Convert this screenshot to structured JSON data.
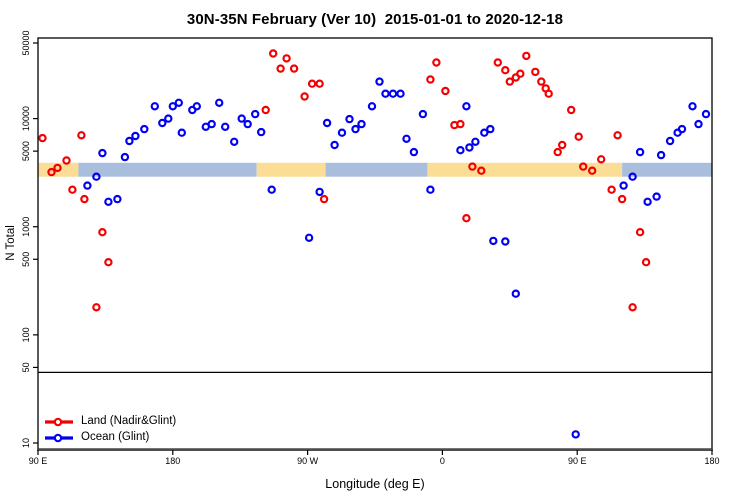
{
  "chart_data": {
    "type": "scatter",
    "title": "30N-35N February (Ver 10)  2015-01-01 to 2020-12-18",
    "xlabel": "Longitude (deg E)",
    "ylabel": "N Total",
    "y_scale": "log",
    "y_range": [
      10,
      50000
    ],
    "y_ticks": [
      10,
      50,
      100,
      500,
      1000,
      5000,
      10000,
      50000
    ],
    "x_axis_span_deg": [
      0,
      450
    ],
    "x_ticks": [
      {
        "pos": 0,
        "label": "90 E"
      },
      {
        "pos": 90,
        "label": "180"
      },
      {
        "pos": 180,
        "label": "90 W"
      },
      {
        "pos": 270,
        "label": "0"
      },
      {
        "pos": 360,
        "label": "90 E"
      },
      {
        "pos": 450,
        "label": "180"
      }
    ],
    "grid": "off",
    "legend_position": "bottom-left-inside",
    "hline_y": 45,
    "band": {
      "y_range": [
        2900,
        3900
      ],
      "colors": {
        "yellow": "#fbdd95",
        "blue": "#a9bedd"
      },
      "segments": [
        {
          "from": 0,
          "to": 27,
          "color": "yellow"
        },
        {
          "from": 27,
          "to": 146,
          "color": "blue"
        },
        {
          "from": 146,
          "to": 192,
          "color": "yellow"
        },
        {
          "from": 192,
          "to": 260,
          "color": "blue"
        },
        {
          "from": 260,
          "to": 390,
          "color": "yellow"
        },
        {
          "from": 390,
          "to": 450,
          "color": "blue"
        }
      ]
    },
    "series": [
      {
        "name": "Land (Nadir&Glint)",
        "color": "#f40000",
        "points": [
          [
            3,
            6600
          ],
          [
            9,
            3200
          ],
          [
            13,
            3500
          ],
          [
            19,
            4100
          ],
          [
            23,
            2200
          ],
          [
            29,
            7000
          ],
          [
            31,
            1800
          ],
          [
            39,
            180
          ],
          [
            43,
            890
          ],
          [
            47,
            470
          ],
          [
            152,
            12000
          ],
          [
            157,
            40000
          ],
          [
            162,
            29000
          ],
          [
            166,
            36000
          ],
          [
            171,
            29000
          ],
          [
            178,
            16000
          ],
          [
            183,
            21000
          ],
          [
            188,
            21000
          ],
          [
            191,
            1800
          ],
          [
            262,
            23000
          ],
          [
            266,
            33000
          ],
          [
            272,
            18000
          ],
          [
            278,
            8700
          ],
          [
            282,
            8900
          ],
          [
            286,
            1200
          ],
          [
            290,
            3600
          ],
          [
            296,
            3300
          ],
          [
            307,
            33000
          ],
          [
            312,
            28000
          ],
          [
            315,
            22000
          ],
          [
            319,
            24000
          ],
          [
            322,
            26000
          ],
          [
            326,
            38000
          ],
          [
            332,
            27000
          ],
          [
            336,
            22000
          ],
          [
            339,
            19000
          ],
          [
            341,
            17000
          ],
          [
            347,
            4900
          ],
          [
            350,
            5700
          ],
          [
            356,
            12000
          ],
          [
            361,
            6800
          ],
          [
            364,
            3600
          ],
          [
            370,
            3300
          ],
          [
            376,
            4200
          ],
          [
            383,
            2200
          ],
          [
            387,
            7000
          ],
          [
            390,
            1800
          ],
          [
            397,
            180
          ],
          [
            402,
            890
          ],
          [
            406,
            470
          ]
        ]
      },
      {
        "name": "Ocean (Glint)",
        "color": "#0000f4",
        "points": [
          [
            33,
            2400
          ],
          [
            39,
            2900
          ],
          [
            43,
            4800
          ],
          [
            47,
            1700
          ],
          [
            53,
            1800
          ],
          [
            58,
            4400
          ],
          [
            61,
            6200
          ],
          [
            65,
            6900
          ],
          [
            71,
            8000
          ],
          [
            78,
            13000
          ],
          [
            83,
            9100
          ],
          [
            87,
            10000
          ],
          [
            90,
            13000
          ],
          [
            94,
            14000
          ],
          [
            96,
            7400
          ],
          [
            103,
            12000
          ],
          [
            106,
            13000
          ],
          [
            112,
            8400
          ],
          [
            116,
            8900
          ],
          [
            121,
            14000
          ],
          [
            125,
            8400
          ],
          [
            131,
            6100
          ],
          [
            136,
            10000
          ],
          [
            140,
            8900
          ],
          [
            145,
            11000
          ],
          [
            149,
            7500
          ],
          [
            156,
            2200
          ],
          [
            181,
            790
          ],
          [
            188,
            2100
          ],
          [
            193,
            9100
          ],
          [
            198,
            5700
          ],
          [
            203,
            7400
          ],
          [
            208,
            9900
          ],
          [
            212,
            8000
          ],
          [
            216,
            8900
          ],
          [
            223,
            13000
          ],
          [
            228,
            22000
          ],
          [
            232,
            17000
          ],
          [
            237,
            17000
          ],
          [
            242,
            17000
          ],
          [
            246,
            6500
          ],
          [
            251,
            4900
          ],
          [
            257,
            11000
          ],
          [
            262,
            2200
          ],
          [
            282,
            5100
          ],
          [
            286,
            13000
          ],
          [
            288,
            5400
          ],
          [
            292,
            6100
          ],
          [
            298,
            7400
          ],
          [
            302,
            8000
          ],
          [
            304,
            740
          ],
          [
            312,
            730
          ],
          [
            319,
            240
          ],
          [
            359,
            12
          ],
          [
            391,
            2400
          ],
          [
            397,
            2900
          ],
          [
            402,
            4900
          ],
          [
            407,
            1700
          ],
          [
            413,
            1900
          ],
          [
            416,
            4600
          ],
          [
            422,
            6200
          ],
          [
            427,
            7400
          ],
          [
            430,
            8000
          ],
          [
            437,
            13000
          ],
          [
            441,
            8900
          ],
          [
            446,
            11000
          ]
        ]
      }
    ]
  }
}
